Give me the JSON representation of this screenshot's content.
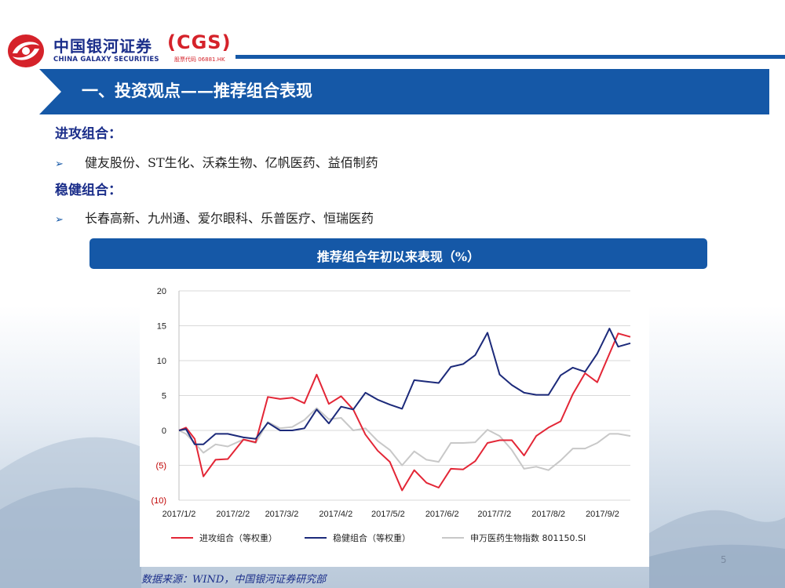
{
  "logo": {
    "cn": "中国银河证券",
    "cgs": "(CGS)",
    "en": "CHINA GALAXY SECURITIES",
    "code": "股票代码 06881.HK"
  },
  "banner": {
    "title": "一、投资观点——推荐组合表现"
  },
  "sections": [
    {
      "heading": "进攻组合：",
      "bullet": "健友股份、ST生化、沃森生物、亿帆医药、益佰制药"
    },
    {
      "heading": "稳健组合：",
      "bullet": "长春高新、九州通、爱尔眼科、乐普医疗、恒瑞医药"
    }
  ],
  "chart_header": "推荐组合年初以来表现（%）",
  "chart_data": {
    "type": "line",
    "ylim": [
      -10,
      20
    ],
    "y_ticks": [
      20,
      15,
      10,
      5,
      0,
      -5,
      -10
    ],
    "y_tick_labels": [
      "20",
      "15",
      "10",
      "5",
      "0",
      "(5)",
      "(10)"
    ],
    "x_tick_labels": [
      "2017/1/2",
      "2017/2/2",
      "2017/3/2",
      "2017/4/2",
      "2017/5/2",
      "2017/6/2",
      "2017/7/2",
      "2017/8/2",
      "2017/9/2"
    ],
    "x_tick_dates": [
      "2017-01-02",
      "2017-02-02",
      "2017-03-02",
      "2017-04-02",
      "2017-05-02",
      "2017-06-02",
      "2017-07-02",
      "2017-08-02",
      "2017-09-02"
    ],
    "x_range": [
      "2017-01-02",
      "2017-09-18"
    ],
    "legend_position": "bottom",
    "series": [
      {
        "name": "进攻组合（等权重）",
        "color": "#e32636",
        "points": [
          [
            "2017-01-02",
            0
          ],
          [
            "2017-01-06",
            0.4
          ],
          [
            "2017-01-11",
            -1.2
          ],
          [
            "2017-01-16",
            -6.6
          ],
          [
            "2017-01-23",
            -4.2
          ],
          [
            "2017-01-30",
            -4.1
          ],
          [
            "2017-02-08",
            -1.3
          ],
          [
            "2017-02-15",
            -1.7
          ],
          [
            "2017-02-22",
            4.8
          ],
          [
            "2017-03-01",
            4.5
          ],
          [
            "2017-03-08",
            4.7
          ],
          [
            "2017-03-15",
            3.9
          ],
          [
            "2017-03-22",
            8.0
          ],
          [
            "2017-03-29",
            3.8
          ],
          [
            "2017-04-05",
            4.9
          ],
          [
            "2017-04-12",
            3.0
          ],
          [
            "2017-04-19",
            -0.6
          ],
          [
            "2017-04-26",
            -2.9
          ],
          [
            "2017-05-03",
            -4.5
          ],
          [
            "2017-05-10",
            -8.6
          ],
          [
            "2017-05-17",
            -5.7
          ],
          [
            "2017-05-24",
            -7.5
          ],
          [
            "2017-05-31",
            -8.2
          ],
          [
            "2017-06-07",
            -5.5
          ],
          [
            "2017-06-14",
            -5.6
          ],
          [
            "2017-06-21",
            -4.4
          ],
          [
            "2017-06-28",
            -1.8
          ],
          [
            "2017-07-05",
            -1.4
          ],
          [
            "2017-07-12",
            -1.4
          ],
          [
            "2017-07-19",
            -3.6
          ],
          [
            "2017-07-26",
            -0.8
          ],
          [
            "2017-08-02",
            0.4
          ],
          [
            "2017-08-09",
            1.3
          ],
          [
            "2017-08-16",
            5.2
          ],
          [
            "2017-08-23",
            8.2
          ],
          [
            "2017-08-30",
            6.9
          ],
          [
            "2017-09-06",
            11.0
          ],
          [
            "2017-09-11",
            13.9
          ],
          [
            "2017-09-18",
            13.4
          ]
        ]
      },
      {
        "name": "稳健组合（等权重）",
        "color": "#1c2a7a",
        "points": [
          [
            "2017-01-02",
            0
          ],
          [
            "2017-01-06",
            0.2
          ],
          [
            "2017-01-11",
            -2.0
          ],
          [
            "2017-01-16",
            -2.0
          ],
          [
            "2017-01-23",
            -0.5
          ],
          [
            "2017-01-30",
            -0.5
          ],
          [
            "2017-02-08",
            -1.0
          ],
          [
            "2017-02-15",
            -1.2
          ],
          [
            "2017-02-22",
            1.1
          ],
          [
            "2017-03-01",
            0
          ],
          [
            "2017-03-08",
            0
          ],
          [
            "2017-03-15",
            0.3
          ],
          [
            "2017-03-22",
            3.0
          ],
          [
            "2017-03-29",
            1.0
          ],
          [
            "2017-04-05",
            3.4
          ],
          [
            "2017-04-12",
            3.0
          ],
          [
            "2017-04-19",
            5.4
          ],
          [
            "2017-04-26",
            4.4
          ],
          [
            "2017-05-03",
            3.7
          ],
          [
            "2017-05-10",
            3.1
          ],
          [
            "2017-05-17",
            7.2
          ],
          [
            "2017-05-24",
            7.0
          ],
          [
            "2017-05-31",
            6.8
          ],
          [
            "2017-06-07",
            9.1
          ],
          [
            "2017-06-14",
            9.5
          ],
          [
            "2017-06-21",
            10.8
          ],
          [
            "2017-06-28",
            14.0
          ],
          [
            "2017-07-05",
            8.0
          ],
          [
            "2017-07-12",
            6.5
          ],
          [
            "2017-07-19",
            5.4
          ],
          [
            "2017-07-26",
            5.1
          ],
          [
            "2017-08-02",
            5.1
          ],
          [
            "2017-08-09",
            7.9
          ],
          [
            "2017-08-16",
            9.0
          ],
          [
            "2017-08-23",
            8.4
          ],
          [
            "2017-08-30",
            11.0
          ],
          [
            "2017-09-06",
            14.6
          ],
          [
            "2017-09-11",
            12.0
          ],
          [
            "2017-09-18",
            12.5
          ]
        ]
      },
      {
        "name": "申万医药生物指数 801150.SI",
        "color": "#c8c8c8",
        "points": [
          [
            "2017-01-02",
            0
          ],
          [
            "2017-01-06",
            -0.5
          ],
          [
            "2017-01-11",
            -1.8
          ],
          [
            "2017-01-16",
            -3.2
          ],
          [
            "2017-01-23",
            -2.0
          ],
          [
            "2017-01-30",
            -2.3
          ],
          [
            "2017-02-08",
            -1.3
          ],
          [
            "2017-02-15",
            -1.8
          ],
          [
            "2017-02-22",
            1.2
          ],
          [
            "2017-03-01",
            0.3
          ],
          [
            "2017-03-08",
            0.5
          ],
          [
            "2017-03-15",
            1.5
          ],
          [
            "2017-03-22",
            3.2
          ],
          [
            "2017-03-29",
            1.6
          ],
          [
            "2017-04-05",
            1.8
          ],
          [
            "2017-04-12",
            0
          ],
          [
            "2017-04-19",
            0.3
          ],
          [
            "2017-04-26",
            -1.5
          ],
          [
            "2017-05-03",
            -2.8
          ],
          [
            "2017-05-10",
            -5.0
          ],
          [
            "2017-05-17",
            -3.0
          ],
          [
            "2017-05-24",
            -4.2
          ],
          [
            "2017-05-31",
            -4.5
          ],
          [
            "2017-06-07",
            -1.8
          ],
          [
            "2017-06-14",
            -1.8
          ],
          [
            "2017-06-21",
            -1.7
          ],
          [
            "2017-06-28",
            0.1
          ],
          [
            "2017-07-05",
            -0.8
          ],
          [
            "2017-07-12",
            -2.8
          ],
          [
            "2017-07-19",
            -5.5
          ],
          [
            "2017-07-26",
            -5.2
          ],
          [
            "2017-08-02",
            -5.7
          ],
          [
            "2017-08-09",
            -4.3
          ],
          [
            "2017-08-16",
            -2.6
          ],
          [
            "2017-08-23",
            -2.6
          ],
          [
            "2017-08-30",
            -1.8
          ],
          [
            "2017-09-06",
            -0.5
          ],
          [
            "2017-09-11",
            -0.5
          ],
          [
            "2017-09-18",
            -0.8
          ]
        ]
      }
    ]
  },
  "page_number": "5",
  "source": "数据来源：WIND，中国银河证券研究部"
}
